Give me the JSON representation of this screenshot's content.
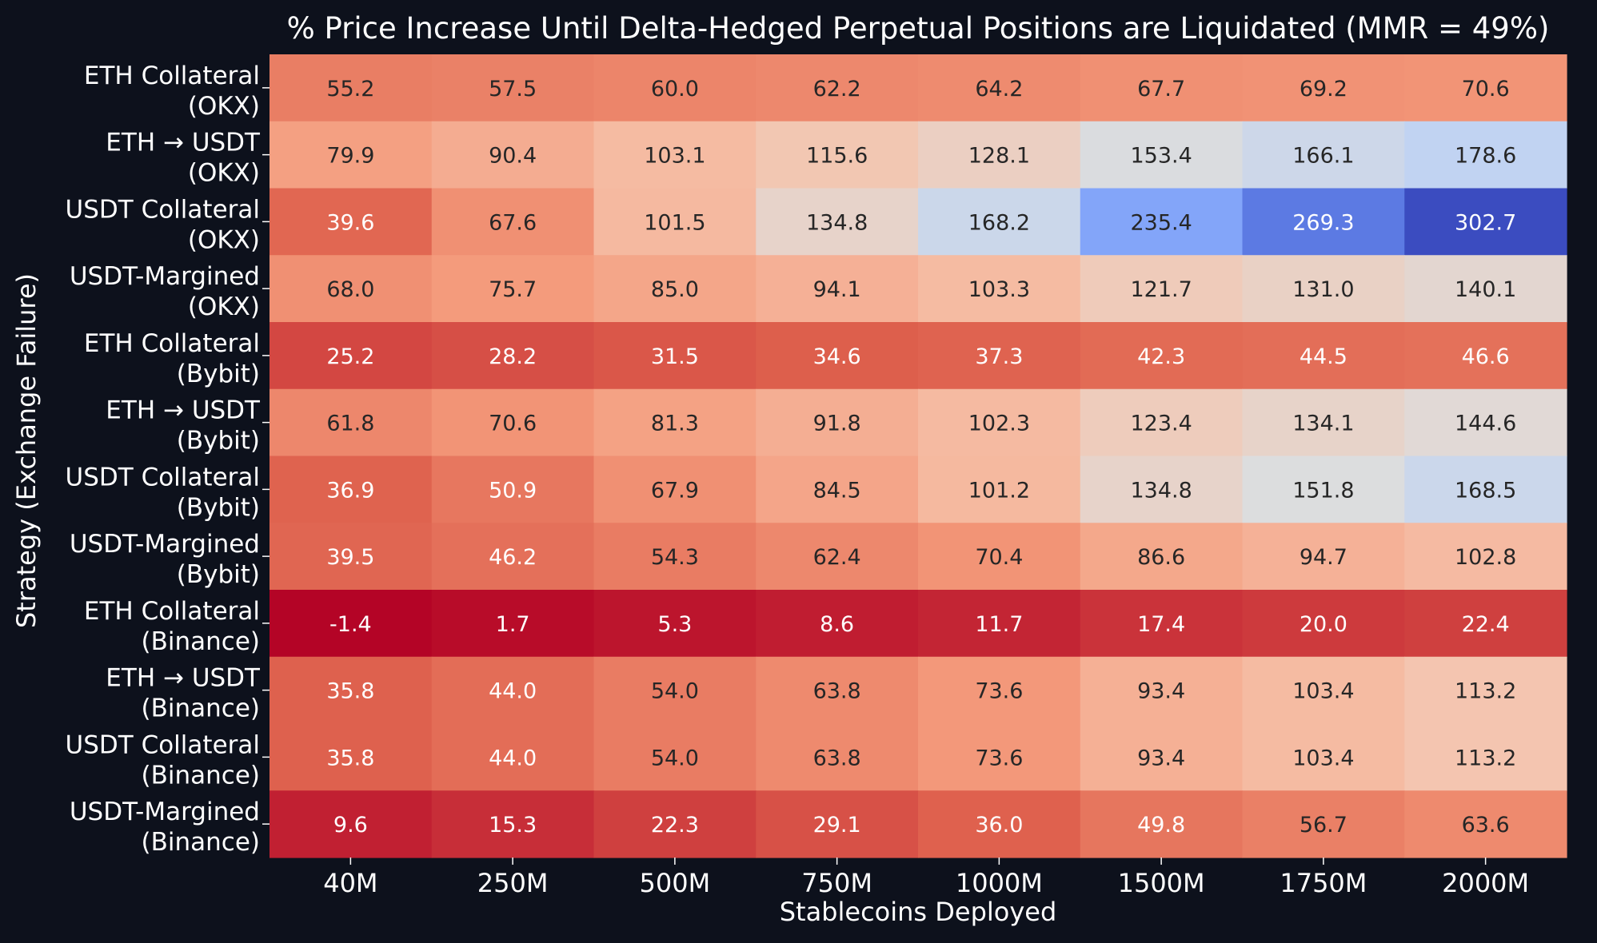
{
  "chart_data": {
    "type": "heatmap",
    "title": "% Price Increase Until Delta-Hedged Perpetual Positions are Liquidated (MMR = 49%)",
    "xlabel": "Stablecoins Deployed",
    "ylabel": "Strategy (Exchange Failure)",
    "columns": [
      "40M",
      "250M",
      "500M",
      "750M",
      "1000M",
      "1500M",
      "1750M",
      "2000M"
    ],
    "rows": [
      [
        "ETH Collateral",
        "(OKX)"
      ],
      [
        "ETH → USDT",
        "(OKX)"
      ],
      [
        "USDT Collateral",
        "(OKX)"
      ],
      [
        "USDT-Margined",
        "(OKX)"
      ],
      [
        "ETH Collateral",
        "(Bybit)"
      ],
      [
        "ETH → USDT",
        "(Bybit)"
      ],
      [
        "USDT Collateral",
        "(Bybit)"
      ],
      [
        "USDT-Margined",
        "(Bybit)"
      ],
      [
        "ETH Collateral",
        "(Binance)"
      ],
      [
        "ETH → USDT",
        "(Binance)"
      ],
      [
        "USDT Collateral",
        "(Binance)"
      ],
      [
        "USDT-Margined",
        "(Binance)"
      ]
    ],
    "values": [
      [
        55.2,
        57.5,
        60.0,
        62.2,
        64.2,
        67.7,
        69.2,
        70.6
      ],
      [
        79.9,
        90.4,
        103.1,
        115.6,
        128.1,
        153.4,
        166.1,
        178.6
      ],
      [
        39.6,
        67.6,
        101.5,
        134.8,
        168.2,
        235.4,
        269.3,
        302.7
      ],
      [
        68.0,
        75.7,
        85.0,
        94.1,
        103.3,
        121.7,
        131.0,
        140.1
      ],
      [
        25.2,
        28.2,
        31.5,
        34.6,
        37.3,
        42.3,
        44.5,
        46.6
      ],
      [
        61.8,
        70.6,
        81.3,
        91.8,
        102.3,
        123.4,
        134.1,
        144.6
      ],
      [
        36.9,
        50.9,
        67.9,
        84.5,
        101.2,
        134.8,
        151.8,
        168.5
      ],
      [
        39.5,
        46.2,
        54.3,
        62.4,
        70.4,
        86.6,
        94.7,
        102.8
      ],
      [
        -1.4,
        1.7,
        5.3,
        8.6,
        11.7,
        17.4,
        20.0,
        22.4
      ],
      [
        35.8,
        44.0,
        54.0,
        63.8,
        73.6,
        93.4,
        103.4,
        113.2
      ],
      [
        35.8,
        44.0,
        54.0,
        63.8,
        73.6,
        93.4,
        103.4,
        113.2
      ],
      [
        9.6,
        15.3,
        22.3,
        29.1,
        36.0,
        49.8,
        56.7,
        63.6
      ]
    ],
    "colormap": "coolwarm_r",
    "vmin": -1.4,
    "vmax": 302.7,
    "value_format": "0.1f",
    "colors": {
      "background": "#0d111c",
      "text": "#ffffff",
      "dark_label": "#262626"
    }
  }
}
